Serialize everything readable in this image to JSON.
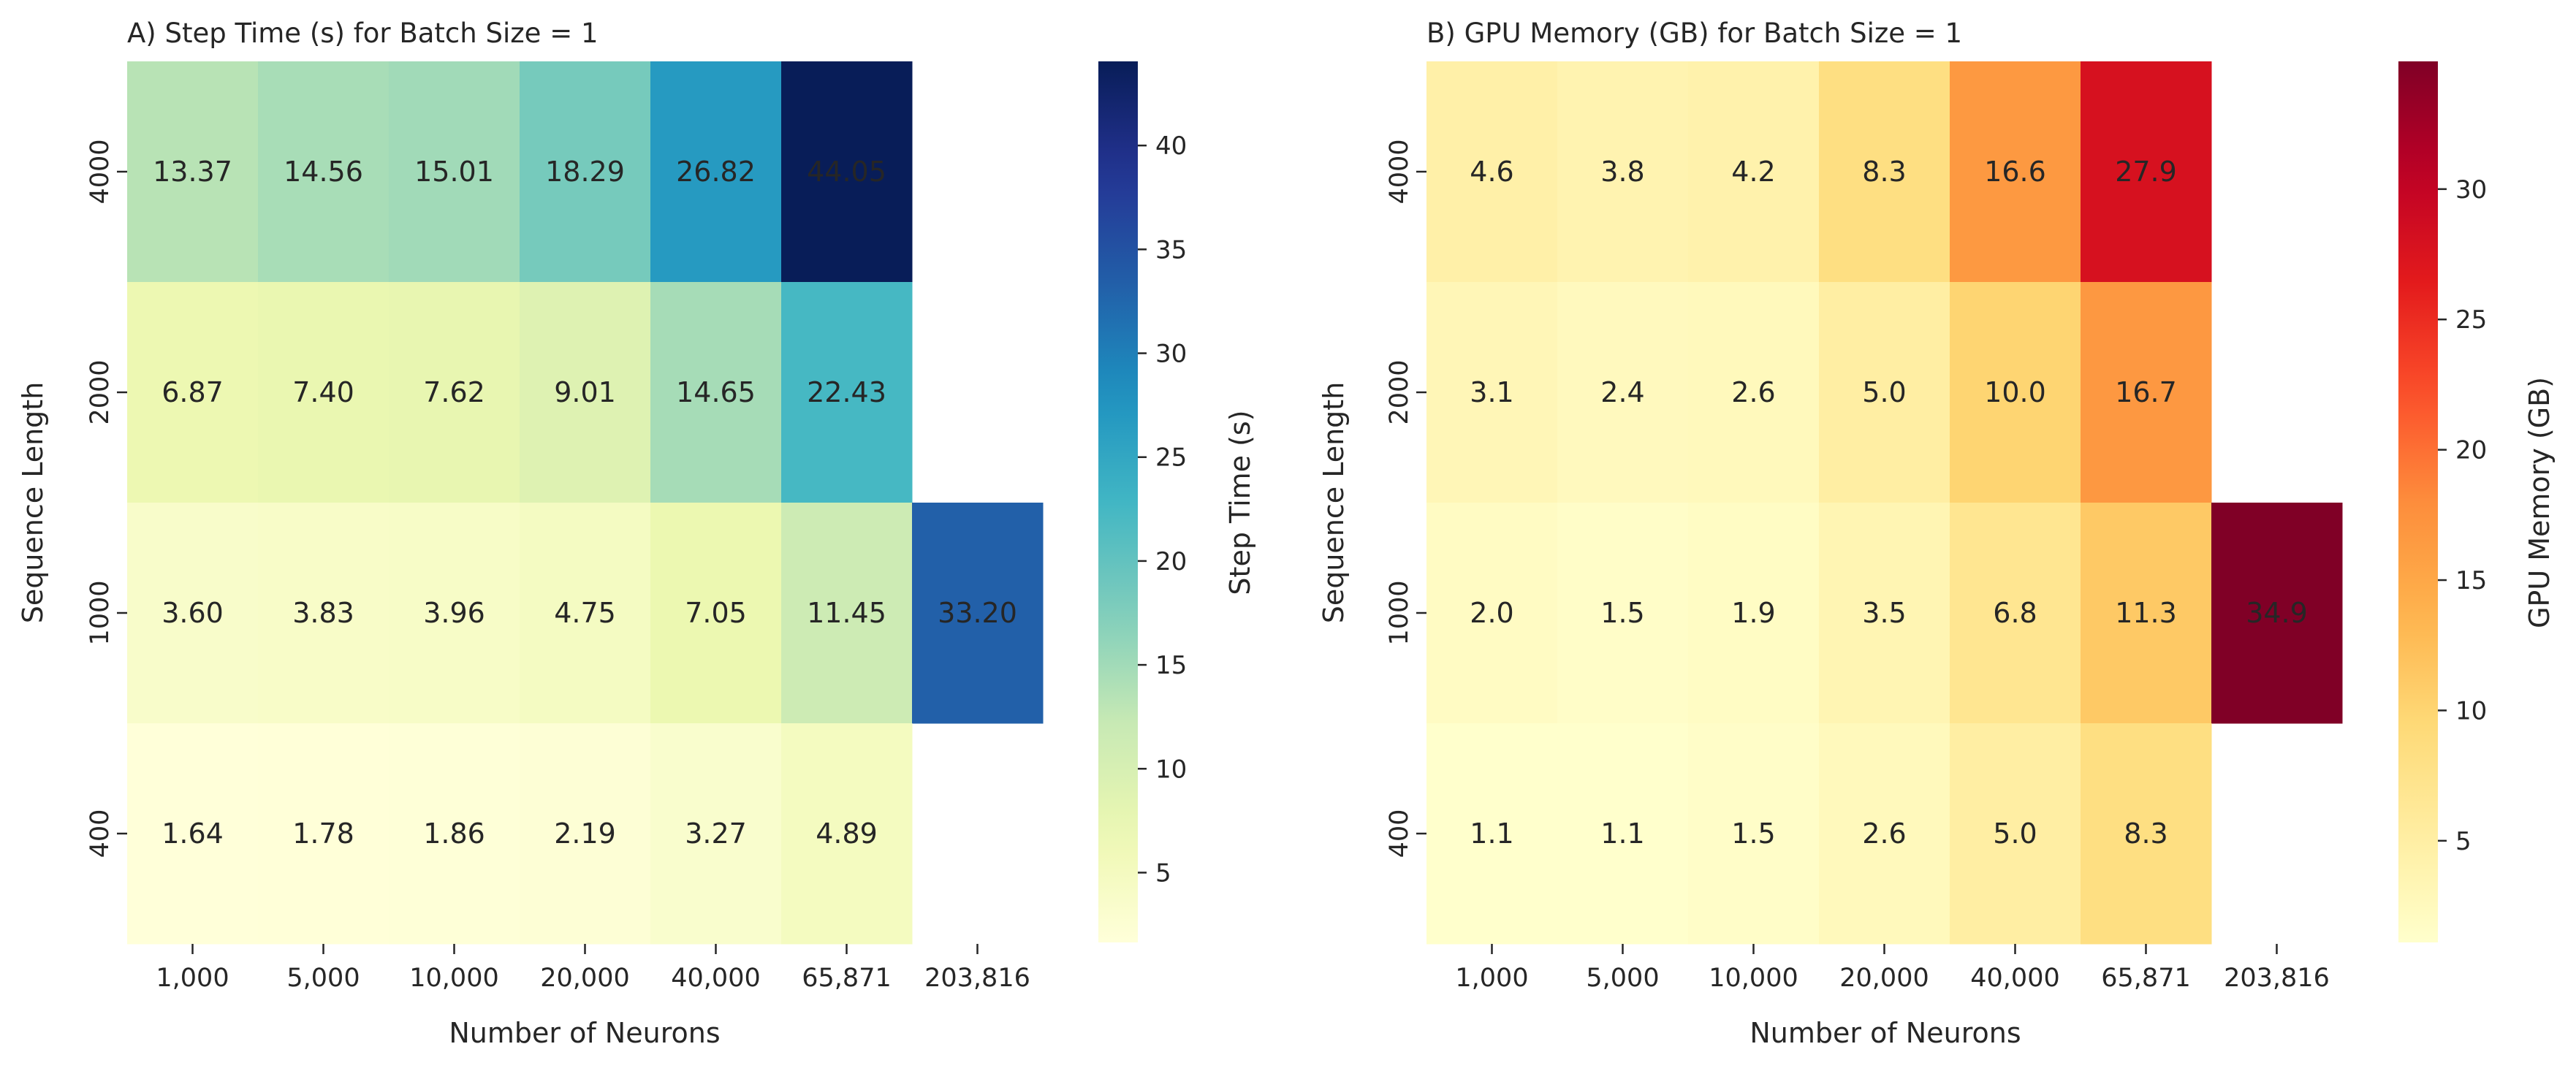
{
  "chart_data": [
    {
      "type": "heatmap",
      "title": "A) Step Time (s) for Batch Size = 1",
      "xlabel": "Number of Neurons",
      "ylabel": "Sequence Length",
      "x_categories": [
        "1,000",
        "5,000",
        "10,000",
        "20,000",
        "40,000",
        "65,871",
        "203,816"
      ],
      "y_categories": [
        "4000",
        "2000",
        "1000",
        "400"
      ],
      "values": [
        [
          13.37,
          14.56,
          15.01,
          18.29,
          26.82,
          44.05,
          null
        ],
        [
          6.87,
          7.4,
          7.62,
          9.01,
          14.65,
          22.43,
          null
        ],
        [
          3.6,
          3.83,
          3.96,
          4.75,
          7.05,
          11.45,
          33.2
        ],
        [
          1.64,
          1.78,
          1.86,
          2.19,
          3.27,
          4.89,
          null
        ]
      ],
      "value_format": 2,
      "colorbar": {
        "label": "Step Time (s)",
        "colormap": "YlGnBu",
        "range": [
          1.64,
          44.05
        ],
        "ticks": [
          5,
          10,
          15,
          20,
          25,
          30,
          35,
          40
        ]
      },
      "grid": false
    },
    {
      "type": "heatmap",
      "title": "B) GPU Memory (GB) for Batch Size = 1",
      "xlabel": "Number of Neurons",
      "ylabel": "Sequence Length",
      "x_categories": [
        "1,000",
        "5,000",
        "10,000",
        "20,000",
        "40,000",
        "65,871",
        "203,816"
      ],
      "y_categories": [
        "4000",
        "2000",
        "1000",
        "400"
      ],
      "values": [
        [
          4.6,
          3.8,
          4.2,
          8.3,
          16.6,
          27.9,
          null
        ],
        [
          3.1,
          2.4,
          2.6,
          5.0,
          10.0,
          16.7,
          null
        ],
        [
          2.0,
          1.5,
          1.9,
          3.5,
          6.8,
          11.3,
          34.9
        ],
        [
          1.1,
          1.1,
          1.5,
          2.6,
          5.0,
          8.3,
          null
        ]
      ],
      "value_format": 1,
      "colorbar": {
        "label": "GPU Memory (GB)",
        "colormap": "YlOrRd",
        "range": [
          1.1,
          34.9
        ],
        "ticks": [
          5,
          10,
          15,
          20,
          25,
          30
        ]
      },
      "grid": false
    }
  ]
}
